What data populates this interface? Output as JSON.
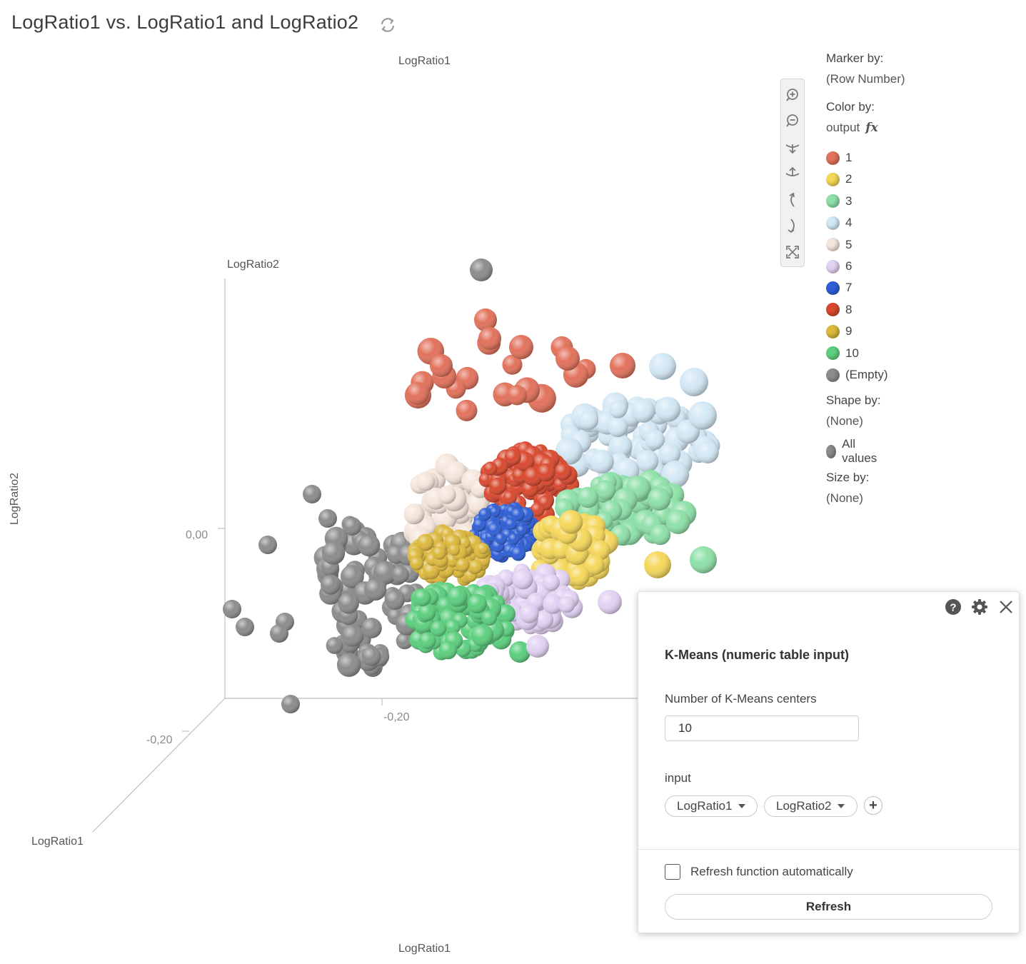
{
  "title": "LogRatio1 vs. LogRatio1 and LogRatio2",
  "chart": {
    "axis_top_label": "LogRatio1",
    "axis_bottom_label": "LogRatio1",
    "axis_left_label": "LogRatio2",
    "z_axis_label": "LogRatio2",
    "depth_axis_label": "LogRatio1",
    "tick_y_zero": "0,00",
    "tick_x": "-0,20",
    "tick_depth": "-0,20"
  },
  "toolbar": {
    "zoom_in": "zoom-in-icon",
    "zoom_out": "zoom-out-icon",
    "rotate_down": "rotate-down-icon",
    "rotate_up": "rotate-up-icon",
    "rotate_left": "rotate-left-icon",
    "rotate_right": "rotate-right-icon",
    "fit": "fit-to-screen-icon"
  },
  "legend": {
    "marker_by_label": "Marker by:",
    "marker_by_value": "(Row Number)",
    "color_by_label": "Color by:",
    "color_by_value": "output",
    "items": [
      {
        "label": "1",
        "color": "#e2725b"
      },
      {
        "label": "2",
        "color": "#f5d75a"
      },
      {
        "label": "3",
        "color": "#8ee0a8"
      },
      {
        "label": "4",
        "color": "#d3e8f5"
      },
      {
        "label": "5",
        "color": "#f5e6dc"
      },
      {
        "label": "6",
        "color": "#e2d2f3"
      },
      {
        "label": "7",
        "color": "#2f5fd6"
      },
      {
        "label": "8",
        "color": "#d9492f"
      },
      {
        "label": "9",
        "color": "#dcb83c"
      },
      {
        "label": "10",
        "color": "#5ccf7e"
      },
      {
        "label": "(Empty)",
        "color": "#8c8c8c"
      }
    ],
    "shape_by_label": "Shape by:",
    "shape_by_value": "(None)",
    "all_values_label": "All values",
    "size_by_label": "Size by:",
    "size_by_value": "(None)"
  },
  "panel": {
    "title": "K-Means (numeric table input)",
    "centers_label": "Number of K-Means centers",
    "centers_value": "10",
    "input_label": "input",
    "columns": [
      "LogRatio1",
      "LogRatio2"
    ],
    "auto_refresh_label": "Refresh function automatically",
    "refresh_button": "Refresh"
  }
}
